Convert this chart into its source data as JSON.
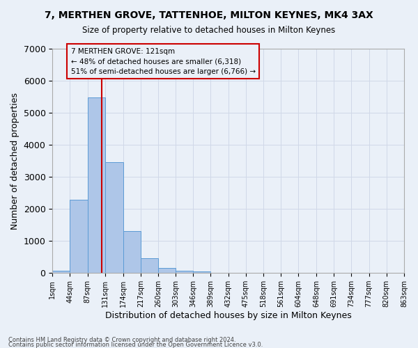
{
  "title": "7, MERTHEN GROVE, TATTENHOE, MILTON KEYNES, MK4 3AX",
  "subtitle": "Size of property relative to detached houses in Milton Keynes",
  "xlabel": "Distribution of detached houses by size in Milton Keynes",
  "ylabel": "Number of detached properties",
  "footnote1": "Contains HM Land Registry data © Crown copyright and database right 2024.",
  "footnote2": "Contains public sector information licensed under the Open Government Licence v3.0.",
  "bar_values": [
    75,
    2280,
    5480,
    3450,
    1300,
    470,
    155,
    80,
    50,
    0,
    0,
    0,
    0,
    0,
    0,
    0,
    0,
    0,
    0,
    0
  ],
  "bin_edges": [
    1,
    44,
    87,
    131,
    174,
    217,
    260,
    303,
    346,
    389,
    432,
    475,
    518,
    561,
    604,
    648,
    691,
    734,
    777,
    820,
    863
  ],
  "bar_color": "#aec6e8",
  "bar_edge_color": "#5b9bd5",
  "grid_color": "#d0d8e8",
  "bg_color": "#eaf0f8",
  "vline_x": 121,
  "vline_color": "#cc0000",
  "annotation_text": "7 MERTHEN GROVE: 121sqm\n← 48% of detached houses are smaller (6,318)\n51% of semi-detached houses are larger (6,766) →",
  "annotation_box_color": "#cc0000",
  "ylim": [
    0,
    7000
  ],
  "yticks": [
    0,
    1000,
    2000,
    3000,
    4000,
    5000,
    6000,
    7000
  ]
}
